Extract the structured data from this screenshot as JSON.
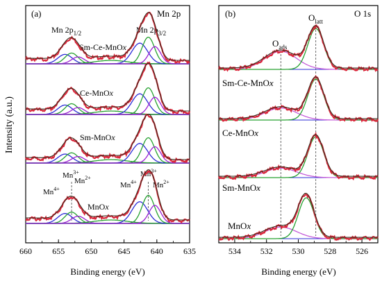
{
  "figure": {
    "panel_a": {
      "tag": "(a)",
      "title": "Mn 2p",
      "peak_group_labels": {
        "p12": "Mn 2p",
        "p12_sub": "1/2",
        "p32": "Mn 2p",
        "p32_sub": "3/2"
      },
      "ion_labels": {
        "mn4": "Mn",
        "mn4_sup": "4+",
        "mn3": "Mn",
        "mn3_sup": "3+",
        "mn2": "Mn",
        "mn2_sup": "2+"
      }
    },
    "panel_b": {
      "tag": "(b)",
      "title": "O 1s",
      "peak_labels": {
        "ads": "O",
        "ads_sub": "ads",
        "latt": "O",
        "latt_sub": "latt"
      }
    }
  },
  "chart_data": [
    {
      "type": "line",
      "panel": "a",
      "title": "Mn 2p",
      "xlabel": "Binding energy (eV)",
      "ylabel": "Intensity (a.u.)",
      "xlim": [
        660,
        635
      ],
      "xticks": [
        660,
        655,
        650,
        645,
        640,
        635
      ],
      "sample_labels": [
        {
          "pre": "Sm-Ce-MnO",
          "x": "x"
        },
        {
          "pre": "Ce-MnO",
          "x": "x"
        },
        {
          "pre": "Sm-MnO",
          "x": "x"
        },
        {
          "pre": "MnO",
          "x": "x"
        }
      ],
      "peak_positions_eV": {
        "Mn4+_2p12": 654.0,
        "Mn3+_2p12": 653.0,
        "Mn2+_2p12": 652.0,
        "Mn4+_2p32": 642.6,
        "Mn3+_2p32": 641.3,
        "Mn2+_2p32": 640.3
      },
      "series": [
        {
          "values": [
            [
              660,
              0.0
            ],
            [
              655,
              0.35
            ],
            [
              653.2,
              0.55
            ],
            [
              650,
              0.15
            ],
            [
              645,
              0.3
            ],
            [
              641.3,
              1.0
            ],
            [
              638,
              0.05
            ],
            [
              635,
              0.0
            ]
          ]
        },
        {
          "values": [
            [
              660,
              0.0
            ],
            [
              655,
              0.35
            ],
            [
              653.0,
              0.55
            ],
            [
              650,
              0.15
            ],
            [
              645,
              0.3
            ],
            [
              641.3,
              1.0
            ],
            [
              638,
              0.05
            ],
            [
              635,
              0.0
            ]
          ]
        },
        {
          "values": [
            [
              660,
              0.0
            ],
            [
              655,
              0.3
            ],
            [
              653.0,
              0.5
            ],
            [
              650,
              0.15
            ],
            [
              645,
              0.3
            ],
            [
              641.3,
              1.0
            ],
            [
              638,
              0.05
            ],
            [
              635,
              0.0
            ]
          ]
        },
        {
          "values": [
            [
              660,
              0.0
            ],
            [
              655,
              0.35
            ],
            [
              653.5,
              0.55
            ],
            [
              650,
              0.12
            ],
            [
              645,
              0.3
            ],
            [
              641.3,
              1.0
            ],
            [
              638,
              0.05
            ],
            [
              635,
              0.0
            ]
          ]
        }
      ],
      "colors": {
        "raw": "#d9263a",
        "envelope": "#3a2a1a",
        "mn4": "#2b2bd6",
        "mn3": "#24a12f",
        "mn2": "#9a1fd4",
        "baseline": "#2b2bd6"
      }
    },
    {
      "type": "line",
      "panel": "b",
      "title": "O 1s",
      "xlabel": "Binding energy (eV)",
      "ylabel": "",
      "xlim": [
        535,
        525
      ],
      "xticks": [
        534,
        532,
        530,
        528,
        526
      ],
      "sample_labels": [
        {
          "pre": "Sm-Ce-MnO",
          "x": "x"
        },
        {
          "pre": "Ce-MnO",
          "x": "x"
        },
        {
          "pre": "Sm-MnO",
          "x": "x"
        },
        {
          "pre": "MnO",
          "x": "x"
        }
      ],
      "peak_positions_eV": {
        "O_ads": 531.1,
        "O_latt": 528.9
      },
      "series": [
        {
          "values": [
            [
              535,
              0.0
            ],
            [
              531.1,
              0.45
            ],
            [
              528.9,
              1.0
            ],
            [
              527,
              0.05
            ],
            [
              525,
              0.0
            ]
          ]
        },
        {
          "values": [
            [
              535,
              0.0
            ],
            [
              531.1,
              0.3
            ],
            [
              528.9,
              1.0
            ],
            [
              527,
              0.05
            ],
            [
              525,
              0.0
            ]
          ]
        },
        {
          "values": [
            [
              535,
              0.0
            ],
            [
              531.1,
              0.25
            ],
            [
              528.9,
              1.0
            ],
            [
              527,
              0.05
            ],
            [
              525,
              0.0
            ]
          ]
        },
        {
          "values": [
            [
              535,
              0.0
            ],
            [
              531.1,
              0.3
            ],
            [
              529.5,
              1.0
            ],
            [
              527,
              0.05
            ],
            [
              525,
              0.0
            ]
          ]
        }
      ],
      "colors": {
        "raw": "#d9263a",
        "envelope": "#3a2a1a",
        "ads": "#c45bd9",
        "latt": "#24a12f",
        "baseline": "#2b2bd6"
      }
    }
  ]
}
